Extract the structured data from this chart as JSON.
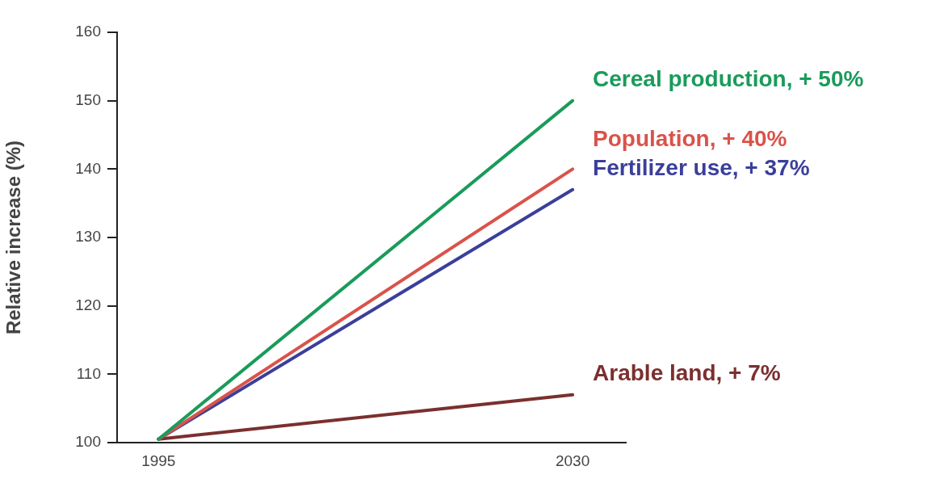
{
  "chart_data": {
    "type": "line",
    "ylabel": "Relative increase (%)",
    "x": [
      1995,
      2030
    ],
    "xlim": [
      1991.5,
      2034.5
    ],
    "xticks": [
      1995,
      2030
    ],
    "ylim": [
      100,
      160
    ],
    "yticks": [
      100,
      110,
      120,
      130,
      140,
      150,
      160
    ],
    "series": [
      {
        "name": "Cereal production, + 50%",
        "color": "#1a9b5a",
        "values": [
          100.5,
          150
        ]
      },
      {
        "name": "Population, + 40%",
        "color": "#d9534a",
        "values": [
          100.5,
          140
        ]
      },
      {
        "name": "Fertilizer use, + 37%",
        "color": "#3b3f9a",
        "values": [
          100.5,
          137
        ]
      },
      {
        "name": "Arable land, + 7%",
        "color": "#7b2f2f",
        "values": [
          100.5,
          107
        ]
      }
    ]
  }
}
